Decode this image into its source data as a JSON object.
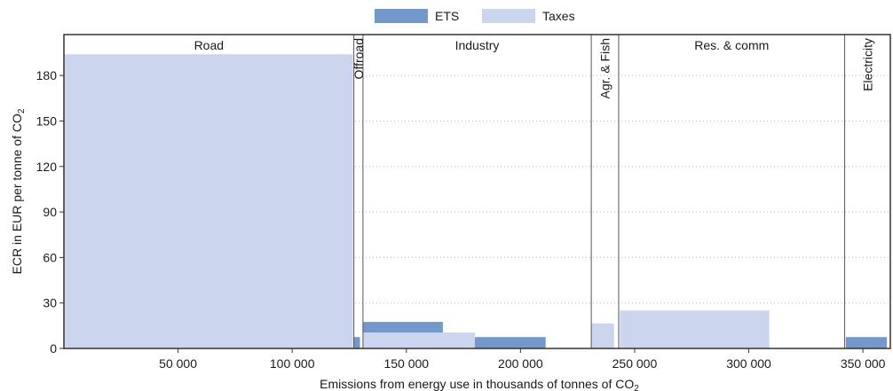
{
  "chart_data": {
    "type": "bar",
    "subtype": "variable-width stacked bars",
    "xlabel": "Emissions from energy use in thousands of tonnes of CO",
    "xlabel_sub": "2",
    "ylabel": "ECR in EUR per tonne of CO",
    "ylabel_sub": "2",
    "xlim": [
      0,
      362000
    ],
    "ylim": [
      0,
      207
    ],
    "grid": "horizontal dotted",
    "legend_position": "top-center",
    "xticks": [
      {
        "value": 50000,
        "label": "50 000"
      },
      {
        "value": 100000,
        "label": "100 000"
      },
      {
        "value": 150000,
        "label": "150 000"
      },
      {
        "value": 200000,
        "label": "200 000"
      },
      {
        "value": 250000,
        "label": "250 000"
      },
      {
        "value": 300000,
        "label": "300 000"
      },
      {
        "value": 350000,
        "label": "350 000"
      }
    ],
    "yticks": [
      {
        "value": 0,
        "label": "0"
      },
      {
        "value": 30,
        "label": "30"
      },
      {
        "value": 60,
        "label": "60"
      },
      {
        "value": 90,
        "label": "90"
      },
      {
        "value": 120,
        "label": "120"
      },
      {
        "value": 150,
        "label": "150"
      },
      {
        "value": 180,
        "label": "180"
      }
    ],
    "legend": [
      {
        "name": "ETS",
        "color": "#7399cc"
      },
      {
        "name": "Taxes",
        "color": "#ccd5ee"
      }
    ],
    "sectors": [
      {
        "label": "Road",
        "start": 0,
        "end": 127000,
        "vertical": false
      },
      {
        "label": "Offroad",
        "start": 127000,
        "end": 131000,
        "vertical": true
      },
      {
        "label": "Industry",
        "start": 131000,
        "end": 231000,
        "vertical": false
      },
      {
        "label": "Agr. & Fish",
        "start": 231000,
        "end": 243000,
        "vertical": true
      },
      {
        "label": "Res. & comm",
        "start": 243000,
        "end": 342000,
        "vertical": false
      },
      {
        "label": "Electricity",
        "start": 342000,
        "end": 362000,
        "vertical": true
      }
    ],
    "bars": [
      {
        "x0": 0,
        "x1": 126600,
        "ets": 0,
        "taxes": 194
      },
      {
        "x0": 126800,
        "x1": 129700,
        "ets": 7.5,
        "taxes": 0
      },
      {
        "x0": 131000,
        "x1": 166000,
        "ets": 17.5,
        "taxes": 0
      },
      {
        "x0": 131000,
        "x1": 180000,
        "ets": 0,
        "taxes": 10.5
      },
      {
        "x0": 180000,
        "x1": 211000,
        "ets": 7.5,
        "taxes": 0
      },
      {
        "x0": 231000,
        "x1": 241000,
        "ets": 0,
        "taxes": 16.5
      },
      {
        "x0": 243500,
        "x1": 309000,
        "ets": 0,
        "taxes": 25
      },
      {
        "x0": 342500,
        "x1": 360500,
        "ets": 7.5,
        "taxes": 0
      }
    ]
  }
}
